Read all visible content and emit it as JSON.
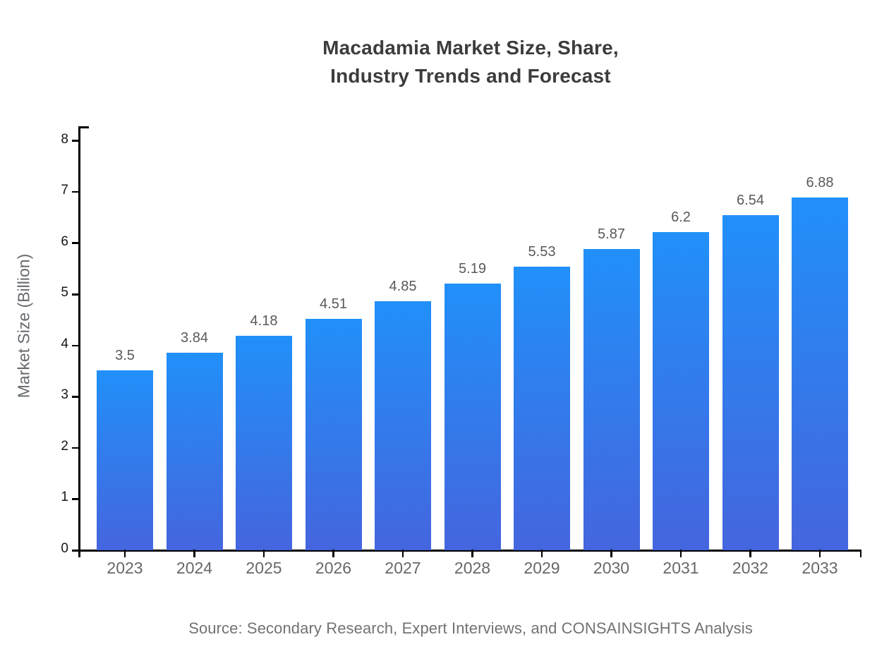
{
  "title": {
    "line1": "Macadamia Market Size, Share,",
    "line2": "Industry Trends and Forecast"
  },
  "footer": {
    "source": "Source: Secondary Research, Expert Interviews, and CONSAINSIGHTS Analysis"
  },
  "chart_data": {
    "type": "bar",
    "title": "Macadamia Market Size, Share, Industry Trends and Forecast",
    "categories": [
      "2023",
      "2024",
      "2025",
      "2026",
      "2027",
      "2028",
      "2029",
      "2030",
      "2031",
      "2032",
      "2033"
    ],
    "values": [
      3.5,
      3.84,
      4.18,
      4.51,
      4.85,
      5.19,
      5.53,
      5.87,
      6.2,
      6.54,
      6.88
    ],
    "value_labels": [
      "3.5",
      "3.84",
      "4.18",
      "4.51",
      "4.85",
      "5.19",
      "5.53",
      "5.87",
      "6.2",
      "6.54",
      "6.88"
    ],
    "xlabel": "",
    "ylabel": "Market Size (Billion)",
    "ylim": [
      0,
      8
    ],
    "yticks": [
      0,
      1,
      2,
      3,
      4,
      5,
      6,
      7,
      8
    ],
    "grid": false,
    "legend": "none",
    "colors": {
      "bar_gradient_top": "#2190F9",
      "bar_gradient_bottom": "#4565DE",
      "axis": "#000000",
      "value_label": "#58595b",
      "x_tick_label": "#66686b",
      "y_tick_label": "#161616",
      "title": "#3c3c3e",
      "axis_title": "#666a6e",
      "footer": "#707274"
    }
  }
}
